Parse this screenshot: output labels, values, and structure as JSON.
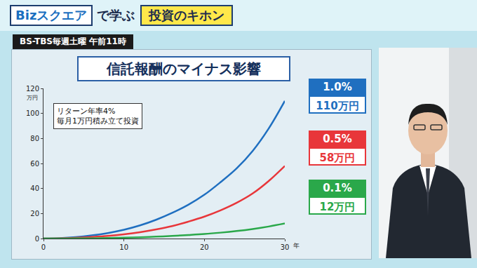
{
  "header": {
    "program": "Bizスクエア",
    "suffix": "で学ぶ",
    "segment": "投資のキホン",
    "schedule": "BS-TBS毎週土曜 午前11時"
  },
  "chart_data": {
    "type": "line",
    "title": "信託報酬のマイナス影響",
    "x_label": "年",
    "y_label": "万円",
    "note": [
      "リターン年率4%",
      "毎月1万円積み立て投資"
    ],
    "x": [
      0,
      2,
      4,
      6,
      8,
      10,
      12,
      14,
      16,
      18,
      20,
      22,
      24,
      26,
      28,
      30
    ],
    "series": [
      {
        "name": "1.0%",
        "color": "#1f6fc0",
        "end_label": "110万円",
        "values": [
          0,
          0.3,
          1.1,
          2.5,
          4.4,
          7,
          10.5,
          15,
          20.5,
          27,
          35,
          45,
          56,
          70,
          88,
          110
        ]
      },
      {
        "name": "0.5%",
        "color": "#e8363a",
        "end_label": "58万円",
        "values": [
          0,
          0.1,
          0.5,
          1.2,
          2.1,
          3.4,
          5.1,
          7.3,
          10,
          13.5,
          17.5,
          22.5,
          28.5,
          36,
          46,
          58
        ]
      },
      {
        "name": "0.1%",
        "color": "#2aa84a",
        "end_label": "12万円",
        "values": [
          0,
          0,
          0.1,
          0.2,
          0.4,
          0.7,
          1,
          1.5,
          2.1,
          2.8,
          3.6,
          4.7,
          6,
          7.6,
          9.6,
          12
        ]
      }
    ],
    "xlim": [
      0,
      30
    ],
    "ylim": [
      0,
      120
    ],
    "xticks": [
      0,
      10,
      20,
      30
    ],
    "yticks": [
      0,
      20,
      40,
      60,
      80,
      100,
      120
    ],
    "grid": false,
    "legend": "right"
  }
}
